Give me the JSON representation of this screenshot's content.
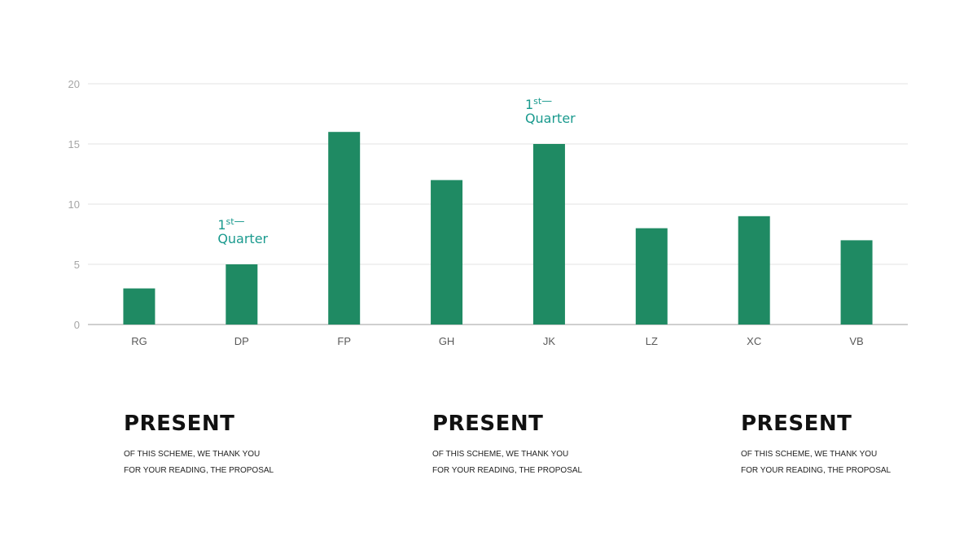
{
  "chart_data": {
    "type": "bar",
    "categories": [
      "RG",
      "DP",
      "FP",
      "GH",
      "JK",
      "LZ",
      "XC",
      "VB"
    ],
    "values": [
      3,
      5,
      16,
      12,
      15,
      8,
      9,
      7
    ],
    "ylim": [
      0,
      20
    ],
    "yticks": [
      0,
      5,
      10,
      15,
      20
    ],
    "grid": true,
    "bar_color": "#1f8a63",
    "annotations": [
      {
        "category": "DP",
        "main": "1",
        "sup": "st",
        "dash": "—",
        "line2": "Quarter"
      },
      {
        "category": "JK",
        "main": "1",
        "sup": "st",
        "dash": "—",
        "line2": "Quarter"
      }
    ],
    "annotation_color": "#1a9a8e"
  },
  "blocks": [
    {
      "title": "PRESENT",
      "line1": "OF THIS SCHEME, WE THANK YOU",
      "line2": "FOR YOUR READING, THE PROPOSAL"
    },
    {
      "title": "PRESENT",
      "line1": "OF THIS SCHEME, WE THANK YOU",
      "line2": "FOR YOUR READING, THE PROPOSAL"
    },
    {
      "title": "PRESENT",
      "line1": "OF THIS SCHEME, WE THANK YOU",
      "line2": "FOR YOUR READING, THE PROPOSAL"
    }
  ]
}
